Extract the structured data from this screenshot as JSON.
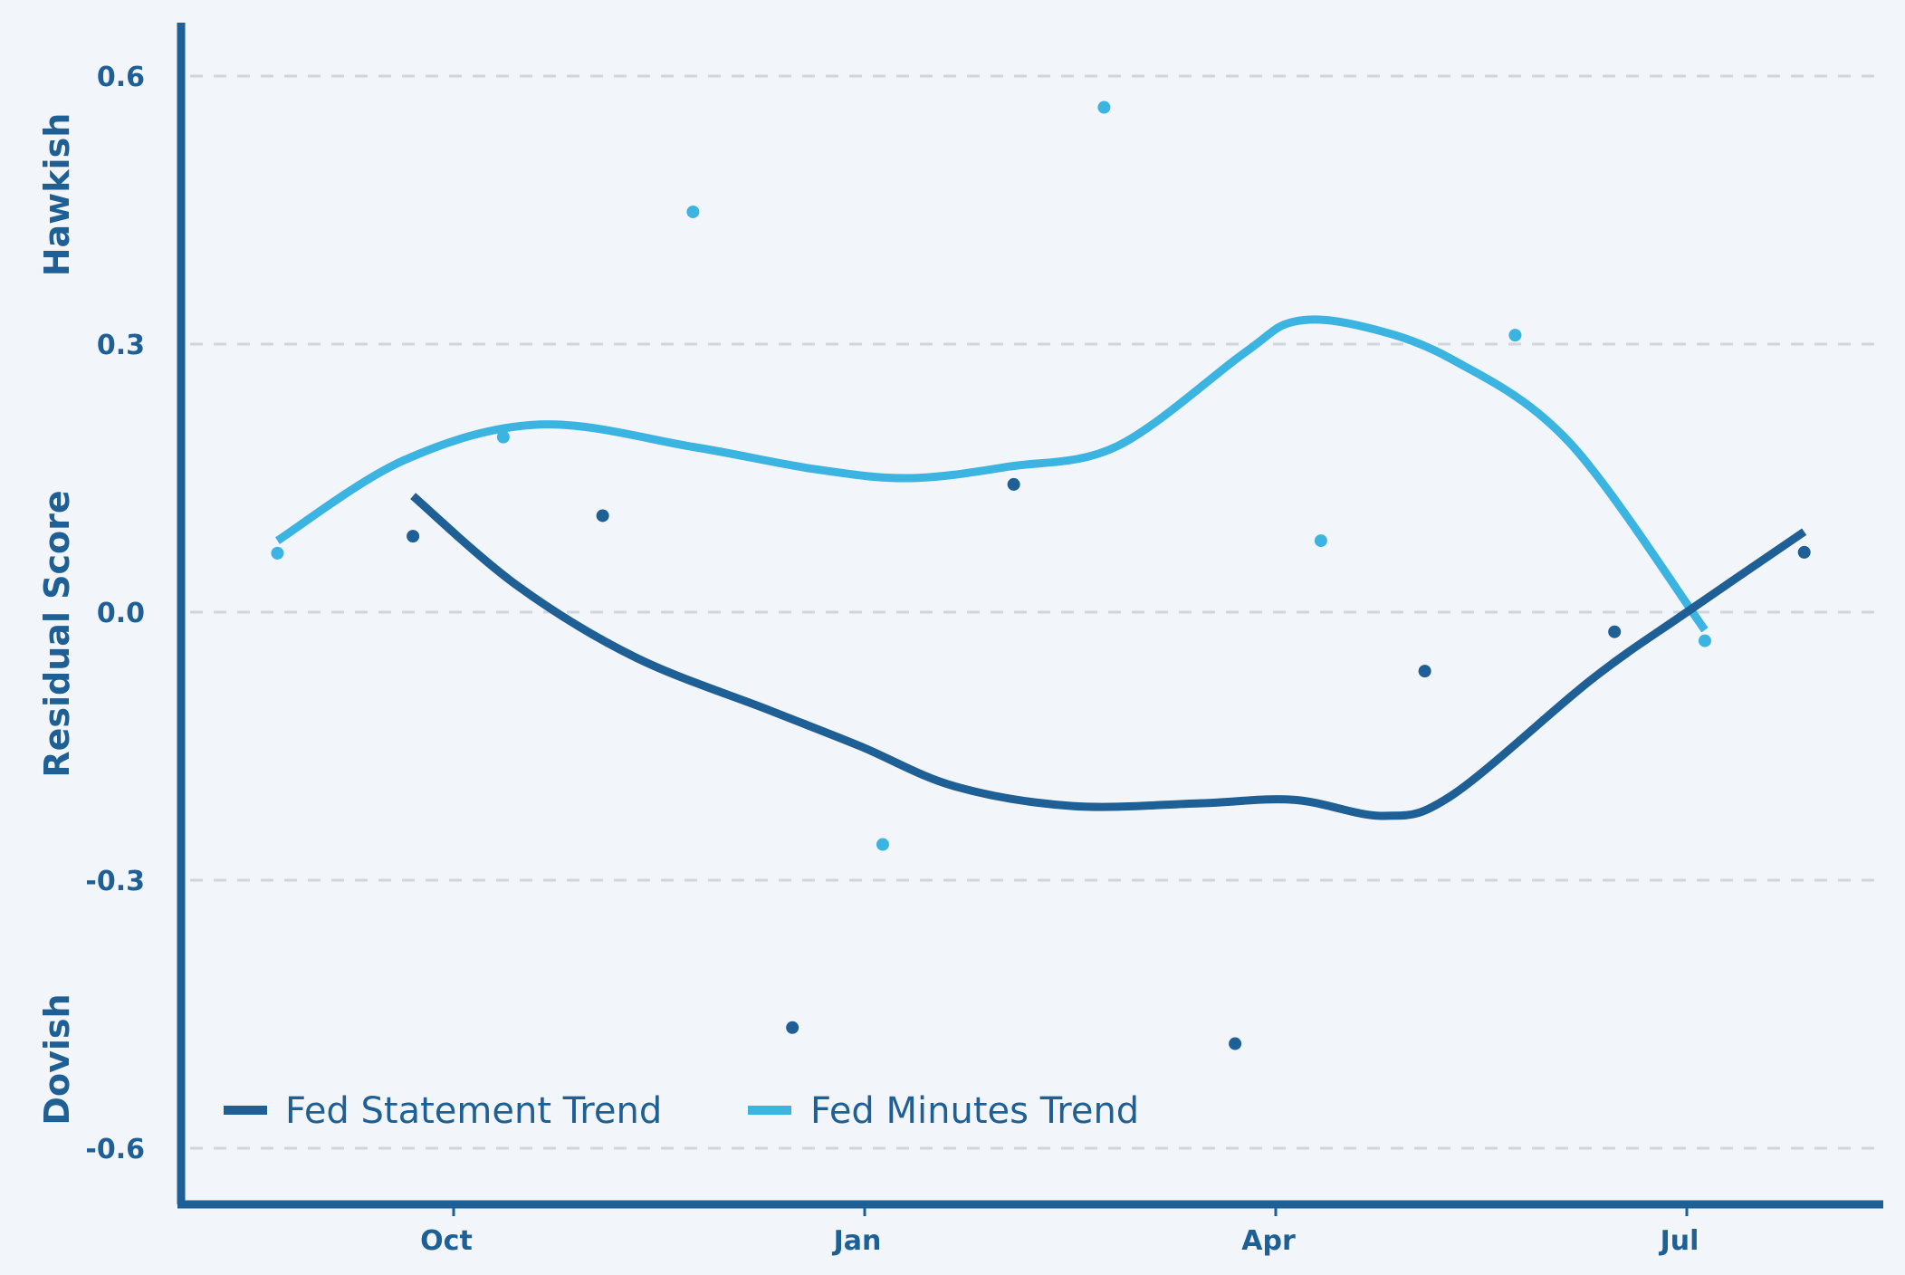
{
  "chart_data": {
    "type": "scatter",
    "title": "",
    "xlabel": "",
    "ylabel": "Residual Score",
    "ylabel_top": "Hawkish",
    "ylabel_bottom": "Dovish",
    "x_ticks": [
      "Oct",
      "Jan",
      "Apr",
      "Jul"
    ],
    "y_ticks": [
      "0.6",
      "0.3",
      "0.0",
      "-0.3",
      "-0.6"
    ],
    "ylim": [
      -0.66,
      0.6
    ],
    "grid": "horizontal dashed",
    "legend_position": "bottom-left",
    "colors": {
      "background": "#f2f6fa",
      "axis": "#1e5f96",
      "text": "#1e5f96",
      "grid": "#cfd6de",
      "statement": "#1e5f96",
      "minutes": "#3bb4e2"
    },
    "series": [
      {
        "name": "Fed Statement Trend",
        "color": "#1e5f96",
        "points": [
          {
            "x": "2022-09-22",
            "y": 0.085
          },
          {
            "x": "2022-11-03",
            "y": 0.108
          },
          {
            "x": "2022-12-15",
            "y": -0.465
          },
          {
            "x": "2023-02-02",
            "y": 0.143
          },
          {
            "x": "2023-03-23",
            "y": -0.483
          },
          {
            "x": "2023-05-04",
            "y": -0.066
          },
          {
            "x": "2023-06-15",
            "y": -0.022
          },
          {
            "x": "2023-07-27",
            "y": 0.067
          }
        ],
        "trend": [
          {
            "x": "2022-09-22",
            "y": 0.13
          },
          {
            "x": "2022-10-15",
            "y": 0.03
          },
          {
            "x": "2022-11-10",
            "y": -0.05
          },
          {
            "x": "2022-12-10",
            "y": -0.11
          },
          {
            "x": "2022-12-30",
            "y": -0.15
          },
          {
            "x": "2023-01-20",
            "y": -0.195
          },
          {
            "x": "2023-02-15",
            "y": -0.217
          },
          {
            "x": "2023-03-15",
            "y": -0.214
          },
          {
            "x": "2023-04-05",
            "y": -0.21
          },
          {
            "x": "2023-04-25",
            "y": -0.228
          },
          {
            "x": "2023-05-10",
            "y": -0.205
          },
          {
            "x": "2023-06-10",
            "y": -0.075
          },
          {
            "x": "2023-07-01",
            "y": 0.0
          },
          {
            "x": "2023-07-27",
            "y": 0.09
          }
        ]
      },
      {
        "name": "Fed Minutes Trend",
        "color": "#3bb4e2",
        "points": [
          {
            "x": "2022-08-23",
            "y": 0.066
          },
          {
            "x": "2022-10-12",
            "y": 0.196
          },
          {
            "x": "2022-11-23",
            "y": 0.448
          },
          {
            "x": "2023-01-04",
            "y": -0.26
          },
          {
            "x": "2023-02-22",
            "y": 0.565
          },
          {
            "x": "2023-04-11",
            "y": 0.08
          },
          {
            "x": "2023-05-24",
            "y": 0.31
          },
          {
            "x": "2023-07-05",
            "y": -0.032
          }
        ],
        "trend": [
          {
            "x": "2022-08-23",
            "y": 0.08
          },
          {
            "x": "2022-09-20",
            "y": 0.17
          },
          {
            "x": "2022-10-20",
            "y": 0.21
          },
          {
            "x": "2022-11-23",
            "y": 0.185
          },
          {
            "x": "2022-12-20",
            "y": 0.16
          },
          {
            "x": "2023-01-10",
            "y": 0.15
          },
          {
            "x": "2023-02-01",
            "y": 0.163
          },
          {
            "x": "2023-02-25",
            "y": 0.186
          },
          {
            "x": "2023-03-25",
            "y": 0.29
          },
          {
            "x": "2023-04-05",
            "y": 0.325
          },
          {
            "x": "2023-04-20",
            "y": 0.32
          },
          {
            "x": "2023-05-10",
            "y": 0.283
          },
          {
            "x": "2023-06-05",
            "y": 0.19
          },
          {
            "x": "2023-07-05",
            "y": -0.02
          }
        ]
      }
    ]
  }
}
